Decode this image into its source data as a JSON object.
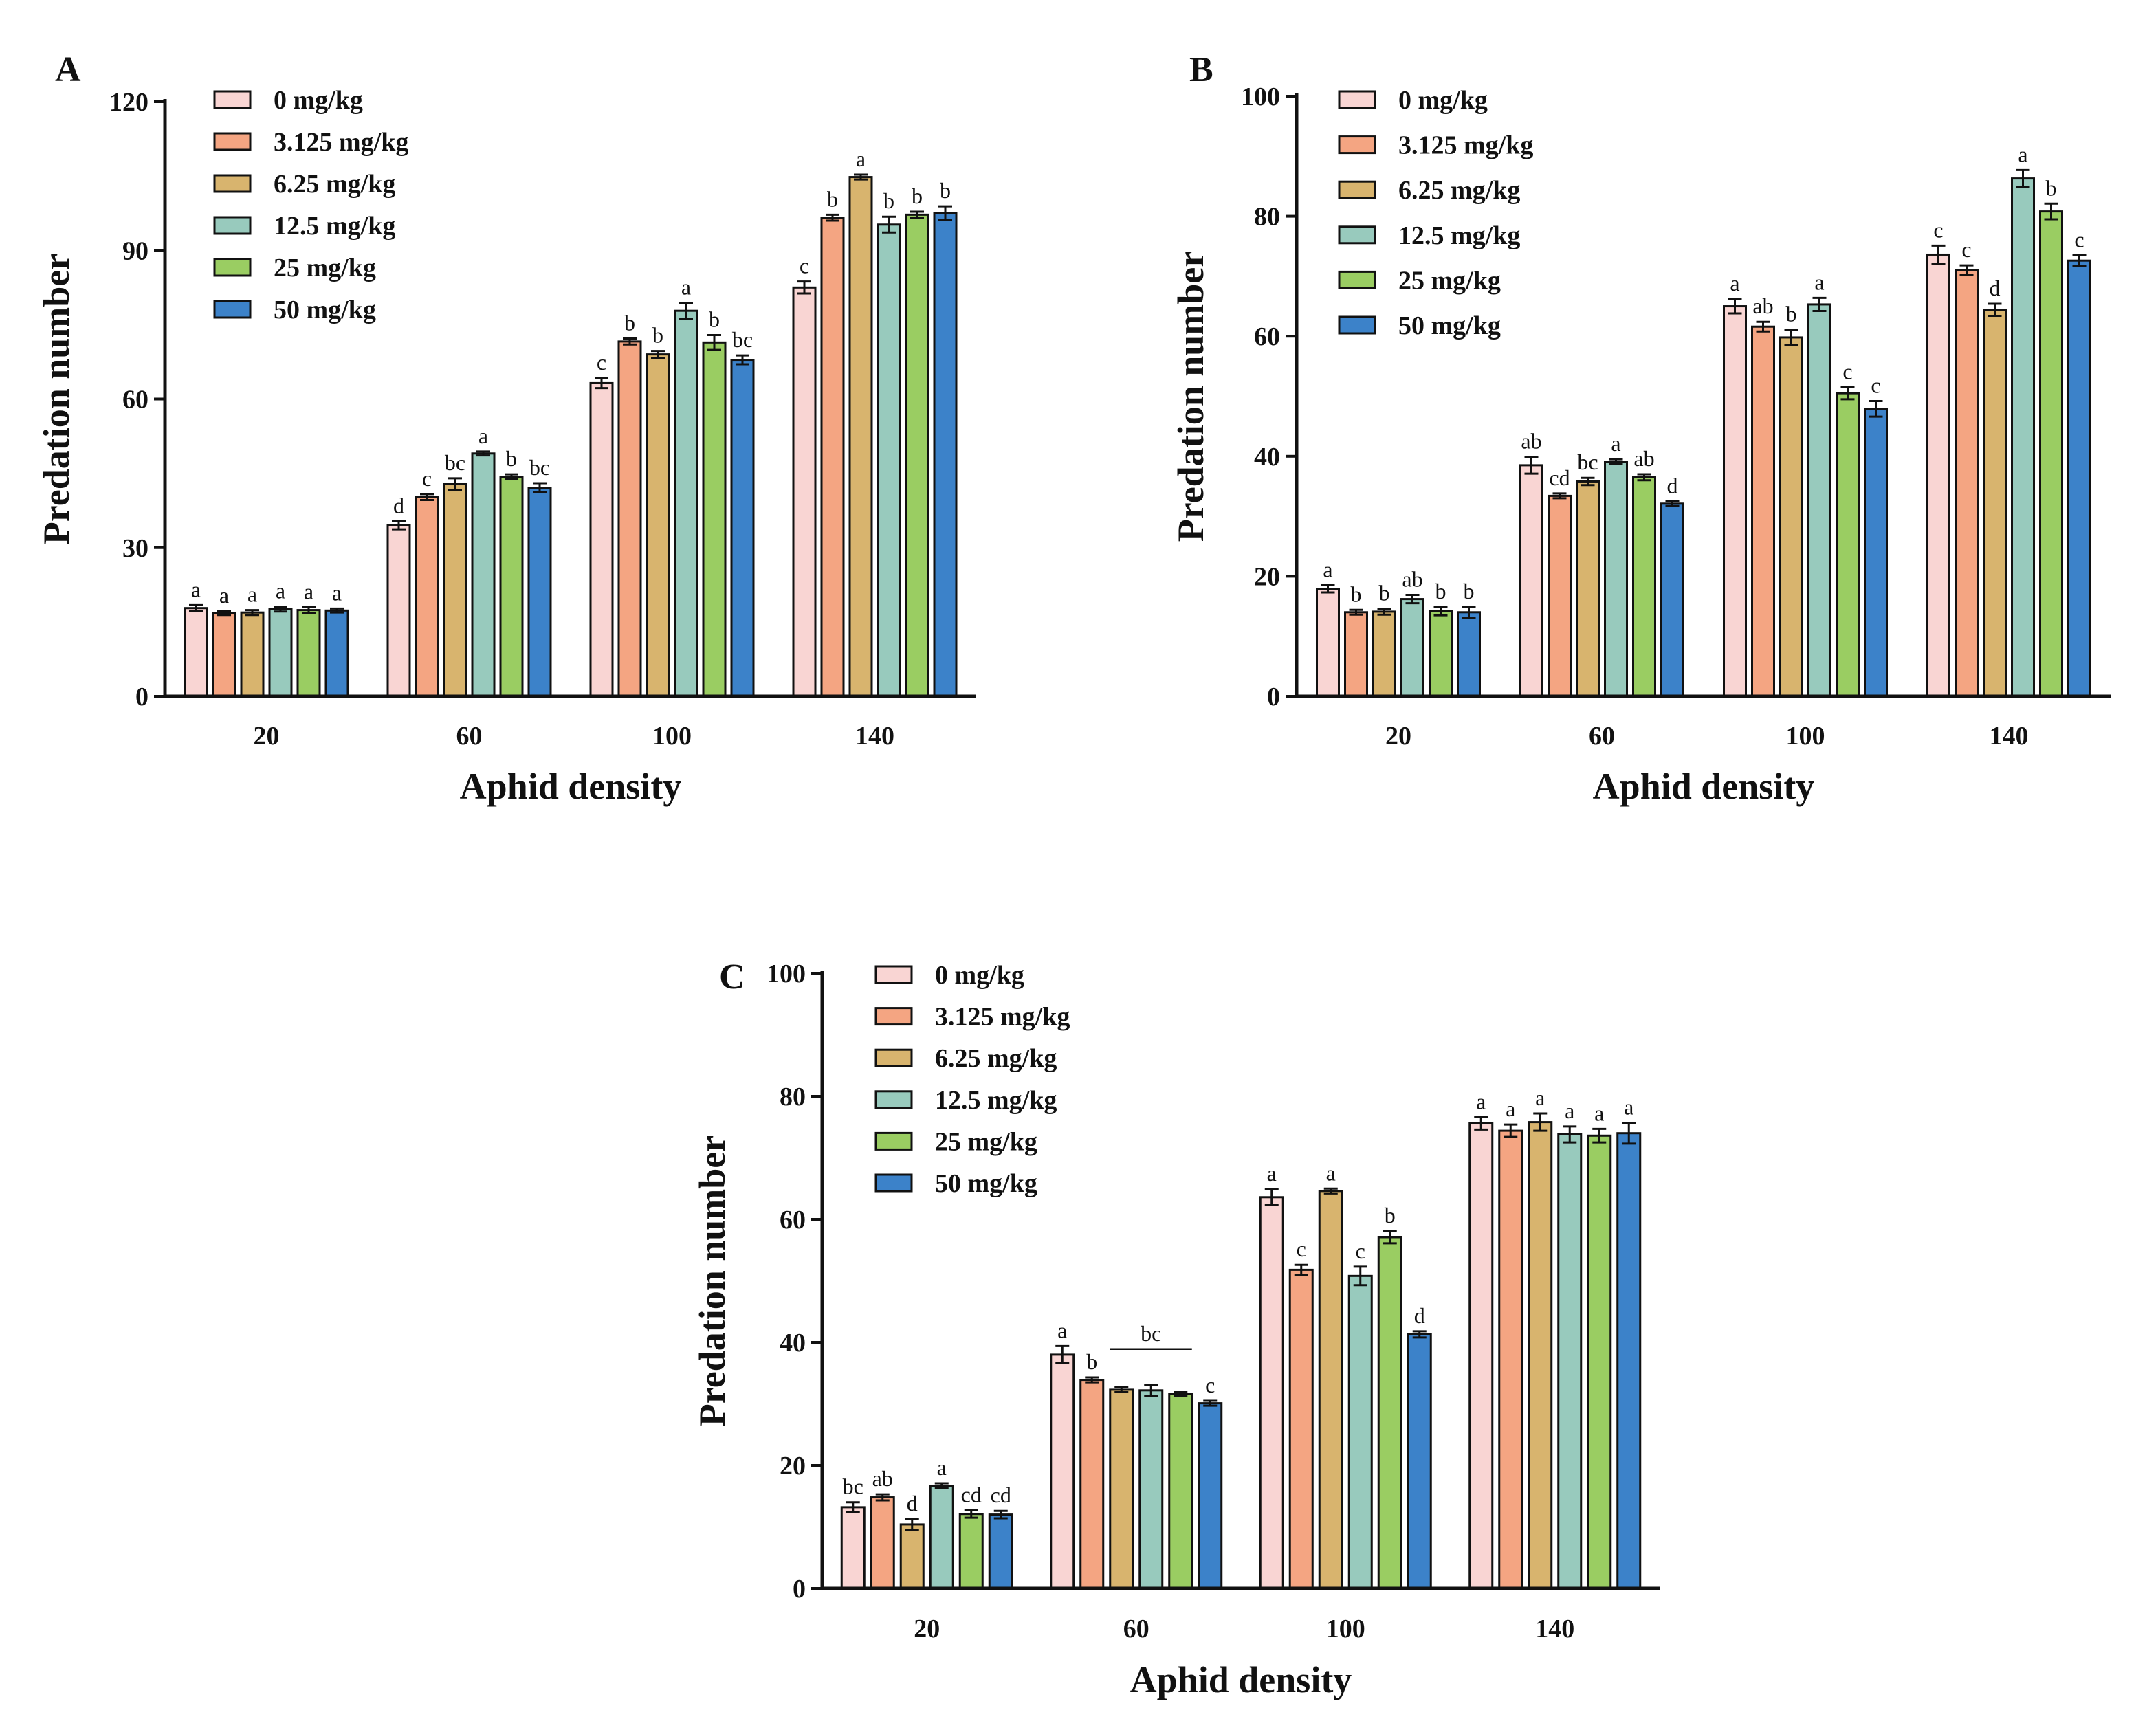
{
  "colors": {
    "series": [
      "#F9D5D3",
      "#F4A582",
      "#D8B46E",
      "#98CABD",
      "#9ACD62",
      "#3C82C9"
    ],
    "stroke": "#111111"
  },
  "chart_data": [
    {
      "panel": "A",
      "type": "bar",
      "xlabel": "Aphid density",
      "ylabel": "Predation number",
      "categories": [
        "20",
        "60",
        "100",
        "140"
      ],
      "ylim": [
        0,
        120
      ],
      "yticks": [
        "0",
        "30",
        "60",
        "90",
        "120"
      ],
      "legend_position": "top-left",
      "series": [
        {
          "name": "0 mg/kg",
          "values": [
            17.8,
            34.5,
            63.2,
            82.5
          ],
          "errors": [
            0.6,
            0.8,
            1.0,
            1.2
          ],
          "letters": [
            "a",
            "d",
            "c",
            "c"
          ]
        },
        {
          "name": "3.125 mg/kg",
          "values": [
            16.8,
            40.2,
            71.6,
            96.6
          ],
          "errors": [
            0.4,
            0.6,
            0.6,
            0.6
          ],
          "letters": [
            "a",
            "c",
            "b",
            "b"
          ]
        },
        {
          "name": "6.25 mg/kg",
          "values": [
            16.9,
            42.8,
            69.0,
            104.8
          ],
          "errors": [
            0.5,
            1.2,
            0.7,
            0.5
          ],
          "letters": [
            "a",
            "bc",
            "b",
            "a"
          ]
        },
        {
          "name": "12.5 mg/kg",
          "values": [
            17.6,
            49.0,
            77.8,
            95.2
          ],
          "errors": [
            0.5,
            0.4,
            1.6,
            1.6
          ],
          "letters": [
            "a",
            "a",
            "a",
            "b"
          ]
        },
        {
          "name": "25 mg/kg",
          "values": [
            17.4,
            44.3,
            71.4,
            97.2
          ],
          "errors": [
            0.6,
            0.5,
            1.5,
            0.6
          ],
          "letters": [
            "a",
            "b",
            "b",
            "b"
          ]
        },
        {
          "name": "50 mg/kg",
          "values": [
            17.3,
            42.1,
            67.9,
            97.5
          ],
          "errors": [
            0.4,
            0.9,
            0.9,
            1.4
          ],
          "letters": [
            "a",
            "bc",
            "bc",
            "b"
          ]
        }
      ]
    },
    {
      "panel": "B",
      "type": "bar",
      "xlabel": "Aphid density",
      "ylabel": "Predation number",
      "categories": [
        "20",
        "60",
        "100",
        "140"
      ],
      "ylim": [
        0,
        100
      ],
      "yticks": [
        "0",
        "20",
        "40",
        "60",
        "80",
        "100"
      ],
      "legend_position": "top-left",
      "series": [
        {
          "name": "0 mg/kg",
          "values": [
            17.9,
            38.5,
            65.0,
            73.6
          ],
          "errors": [
            0.6,
            1.4,
            1.2,
            1.5
          ],
          "letters": [
            "a",
            "ab",
            "a",
            "c"
          ]
        },
        {
          "name": "3.125 mg/kg",
          "values": [
            14.0,
            33.4,
            61.6,
            71.0
          ],
          "errors": [
            0.4,
            0.4,
            0.8,
            0.8
          ],
          "letters": [
            "b",
            "cd",
            "ab",
            "c"
          ]
        },
        {
          "name": "6.25 mg/kg",
          "values": [
            14.1,
            35.8,
            59.8,
            64.4
          ],
          "errors": [
            0.5,
            0.6,
            1.3,
            1.0
          ],
          "letters": [
            "b",
            "bc",
            "b",
            "d"
          ]
        },
        {
          "name": "12.5 mg/kg",
          "values": [
            16.2,
            39.1,
            65.3,
            86.3
          ],
          "errors": [
            0.7,
            0.4,
            1.1,
            1.4
          ],
          "letters": [
            "ab",
            "a",
            "a",
            "a"
          ]
        },
        {
          "name": "25 mg/kg",
          "values": [
            14.2,
            36.5,
            50.5,
            80.8
          ],
          "errors": [
            0.7,
            0.5,
            1.0,
            1.3
          ],
          "letters": [
            "b",
            "ab",
            "c",
            "b"
          ]
        },
        {
          "name": "50 mg/kg",
          "values": [
            14.0,
            32.1,
            47.9,
            72.6
          ],
          "errors": [
            0.9,
            0.4,
            1.3,
            0.9
          ],
          "letters": [
            "b",
            "d",
            "c",
            "c"
          ]
        }
      ]
    },
    {
      "panel": "C",
      "type": "bar",
      "xlabel": "Aphid density",
      "ylabel": "Predation number",
      "categories": [
        "20",
        "60",
        "100",
        "140"
      ],
      "ylim": [
        0,
        100
      ],
      "yticks": [
        "0",
        "20",
        "40",
        "60",
        "80",
        "100"
      ],
      "legend_position": "top-left",
      "bracket_annotation": {
        "category": "60",
        "label": "bc",
        "from_series": 2,
        "to_series": 4
      },
      "series": [
        {
          "name": "0 mg/kg",
          "values": [
            13.2,
            38.0,
            63.6,
            75.6
          ],
          "errors": [
            0.8,
            1.4,
            1.3,
            1.0
          ],
          "letters": [
            "bc",
            "a",
            "a",
            "a"
          ]
        },
        {
          "name": "3.125 mg/kg",
          "values": [
            14.8,
            33.9,
            51.8,
            74.4
          ],
          "errors": [
            0.5,
            0.4,
            0.8,
            1.0
          ],
          "letters": [
            "ab",
            "b",
            "c",
            "a"
          ]
        },
        {
          "name": "6.25 mg/kg",
          "values": [
            10.4,
            32.3,
            64.6,
            75.8
          ],
          "errors": [
            0.9,
            0.4,
            0.4,
            1.4
          ],
          "letters": [
            "d",
            "",
            "a",
            "a"
          ]
        },
        {
          "name": "12.5 mg/kg",
          "values": [
            16.7,
            32.2,
            50.8,
            73.8
          ],
          "errors": [
            0.4,
            0.9,
            1.5,
            1.3
          ],
          "letters": [
            "a",
            "",
            "c",
            "a"
          ]
        },
        {
          "name": "25 mg/kg",
          "values": [
            12.1,
            31.6,
            57.1,
            73.6
          ],
          "errors": [
            0.6,
            0.3,
            1.0,
            1.1
          ],
          "letters": [
            "cd",
            "",
            "b",
            "a"
          ]
        },
        {
          "name": "50 mg/kg",
          "values": [
            12.0,
            30.1,
            41.3,
            74.0
          ],
          "errors": [
            0.6,
            0.4,
            0.5,
            1.7
          ],
          "letters": [
            "cd",
            "c",
            "d",
            "a"
          ]
        }
      ]
    }
  ]
}
